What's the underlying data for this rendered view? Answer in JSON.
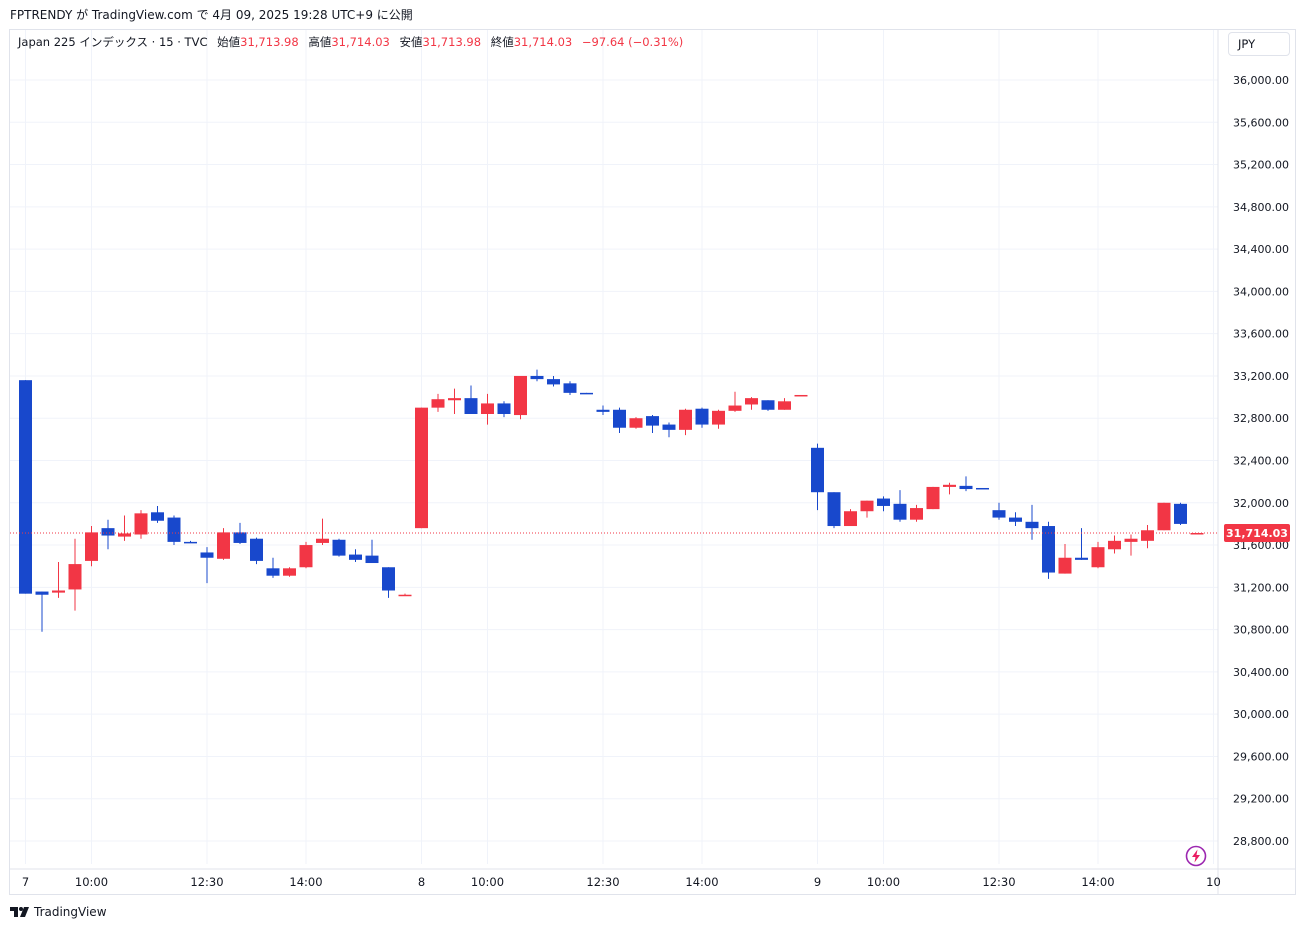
{
  "header": {
    "publisher_line": "FPTRENDY が TradingView.com で 4月 09, 2025 19:28 UTC+9 に公開"
  },
  "legend": {
    "symbol": "Japan 225 インデックス · 15 · TVC",
    "open_label": "始値",
    "open": "31,713.98",
    "high_label": "高値",
    "high": "31,714.03",
    "low_label": "安値",
    "low": "31,713.98",
    "close_label": "終値",
    "close": "31,714.03",
    "change": "−97.64 (−0.31%)"
  },
  "currency": "JPY",
  "footer": {
    "brand": "TradingView"
  },
  "icons": {
    "logo": "tradingview-logo-icon",
    "fx": "lightning-icon"
  },
  "colors": {
    "up": "#f23645",
    "down": "#1848cc",
    "grid": "#f0f3fa",
    "price_badge": "#f23645"
  },
  "chart_data": {
    "type": "candlestick",
    "ylim": [
      28600,
      36400
    ],
    "y_ticks": [
      28800,
      29200,
      29600,
      30000,
      30400,
      30800,
      31200,
      31600,
      32000,
      32400,
      32800,
      33200,
      33600,
      34000,
      34400,
      34800,
      35200,
      35600,
      36000
    ],
    "y_tick_labels": [
      "28,800.00",
      "29,200.00",
      "29,600.00",
      "30,000.00",
      "30,400.00",
      "30,800.00",
      "31,200.00",
      "31,600.00",
      "32,000.00",
      "32,400.00",
      "32,800.00",
      "33,200.00",
      "33,600.00",
      "34,000.00",
      "34,400.00",
      "34,800.00",
      "35,200.00",
      "35,600.00",
      "36,000.00"
    ],
    "x_ticks": [
      {
        "i": 0,
        "label": "7"
      },
      {
        "i": 4,
        "label": "10:00"
      },
      {
        "i": 11,
        "label": "12:30"
      },
      {
        "i": 17,
        "label": "14:00"
      },
      {
        "i": 24,
        "label": "8"
      },
      {
        "i": 28,
        "label": "10:00"
      },
      {
        "i": 35,
        "label": "12:30"
      },
      {
        "i": 41,
        "label": "14:00"
      },
      {
        "i": 48,
        "label": "9"
      },
      {
        "i": 52,
        "label": "10:00"
      },
      {
        "i": 59,
        "label": "12:30"
      },
      {
        "i": 65,
        "label": "14:00"
      },
      {
        "i": 72,
        "label": "10"
      }
    ],
    "last_price": 31714.03,
    "last_price_label": "31,714.03",
    "candles": [
      {
        "o": 33160,
        "h": 33160,
        "l": 31140,
        "c": 31140
      },
      {
        "o": 31160,
        "h": 31160,
        "l": 30780,
        "c": 31130
      },
      {
        "o": 31150,
        "h": 31440,
        "l": 31100,
        "c": 31170
      },
      {
        "o": 31180,
        "h": 31660,
        "l": 30980,
        "c": 31420
      },
      {
        "o": 31450,
        "h": 31780,
        "l": 31400,
        "c": 31720
      },
      {
        "o": 31760,
        "h": 31840,
        "l": 31560,
        "c": 31690
      },
      {
        "o": 31680,
        "h": 31880,
        "l": 31640,
        "c": 31710
      },
      {
        "o": 31700,
        "h": 31930,
        "l": 31660,
        "c": 31900
      },
      {
        "o": 31910,
        "h": 31970,
        "l": 31810,
        "c": 31830
      },
      {
        "o": 31860,
        "h": 31880,
        "l": 31600,
        "c": 31630
      },
      {
        "o": 31630,
        "h": 31640,
        "l": 31620,
        "c": 31620
      },
      {
        "o": 31530,
        "h": 31580,
        "l": 31240,
        "c": 31480
      },
      {
        "o": 31470,
        "h": 31760,
        "l": 31460,
        "c": 31720
      },
      {
        "o": 31720,
        "h": 31810,
        "l": 31610,
        "c": 31620
      },
      {
        "o": 31660,
        "h": 31670,
        "l": 31420,
        "c": 31450
      },
      {
        "o": 31380,
        "h": 31480,
        "l": 31290,
        "c": 31310
      },
      {
        "o": 31310,
        "h": 31390,
        "l": 31300,
        "c": 31380
      },
      {
        "o": 31390,
        "h": 31630,
        "l": 31380,
        "c": 31600
      },
      {
        "o": 31620,
        "h": 31850,
        "l": 31600,
        "c": 31660
      },
      {
        "o": 31650,
        "h": 31660,
        "l": 31490,
        "c": 31500
      },
      {
        "o": 31510,
        "h": 31560,
        "l": 31440,
        "c": 31460
      },
      {
        "o": 31500,
        "h": 31650,
        "l": 31430,
        "c": 31430
      },
      {
        "o": 31390,
        "h": 31390,
        "l": 31100,
        "c": 31170
      },
      {
        "o": 31130,
        "h": 31140,
        "l": 31120,
        "c": 31130
      },
      {
        "o": 31760,
        "h": 32900,
        "l": 31760,
        "c": 32900
      },
      {
        "o": 32900,
        "h": 33030,
        "l": 32860,
        "c": 32980
      },
      {
        "o": 32970,
        "h": 33080,
        "l": 32840,
        "c": 32990
      },
      {
        "o": 32990,
        "h": 33110,
        "l": 32840,
        "c": 32840
      },
      {
        "o": 32840,
        "h": 33030,
        "l": 32740,
        "c": 32940
      },
      {
        "o": 32940,
        "h": 32960,
        "l": 32810,
        "c": 32840
      },
      {
        "o": 32830,
        "h": 33200,
        "l": 32790,
        "c": 33200
      },
      {
        "o": 33200,
        "h": 33260,
        "l": 33150,
        "c": 33170
      },
      {
        "o": 33170,
        "h": 33200,
        "l": 33100,
        "c": 33120
      },
      {
        "o": 33130,
        "h": 33150,
        "l": 33020,
        "c": 33040
      },
      {
        "o": 33040,
        "h": 33040,
        "l": 33030,
        "c": 33030
      },
      {
        "o": 32880,
        "h": 32920,
        "l": 32830,
        "c": 32860
      },
      {
        "o": 32880,
        "h": 32900,
        "l": 32660,
        "c": 32710
      },
      {
        "o": 32710,
        "h": 32810,
        "l": 32700,
        "c": 32800
      },
      {
        "o": 32820,
        "h": 32830,
        "l": 32660,
        "c": 32730
      },
      {
        "o": 32740,
        "h": 32760,
        "l": 32620,
        "c": 32690
      },
      {
        "o": 32690,
        "h": 32890,
        "l": 32640,
        "c": 32880
      },
      {
        "o": 32890,
        "h": 32900,
        "l": 32710,
        "c": 32740
      },
      {
        "o": 32740,
        "h": 32880,
        "l": 32700,
        "c": 32870
      },
      {
        "o": 32870,
        "h": 33050,
        "l": 32860,
        "c": 32920
      },
      {
        "o": 32930,
        "h": 33000,
        "l": 32880,
        "c": 32990
      },
      {
        "o": 32970,
        "h": 32970,
        "l": 32870,
        "c": 32880
      },
      {
        "o": 32880,
        "h": 32990,
        "l": 32880,
        "c": 32960
      },
      {
        "o": 33010,
        "h": 33020,
        "l": 33010,
        "c": 33020
      },
      {
        "o": 32520,
        "h": 32560,
        "l": 31930,
        "c": 32100
      },
      {
        "o": 32100,
        "h": 32100,
        "l": 31760,
        "c": 31780
      },
      {
        "o": 31780,
        "h": 31940,
        "l": 31780,
        "c": 31920
      },
      {
        "o": 31920,
        "h": 32020,
        "l": 31860,
        "c": 32020
      },
      {
        "o": 32040,
        "h": 32060,
        "l": 31920,
        "c": 31970
      },
      {
        "o": 31990,
        "h": 32120,
        "l": 31820,
        "c": 31840
      },
      {
        "o": 31840,
        "h": 31980,
        "l": 31820,
        "c": 31950
      },
      {
        "o": 31940,
        "h": 32150,
        "l": 31940,
        "c": 32150
      },
      {
        "o": 32150,
        "h": 32190,
        "l": 32080,
        "c": 32170
      },
      {
        "o": 32160,
        "h": 32250,
        "l": 32110,
        "c": 32130
      },
      {
        "o": 32140,
        "h": 32140,
        "l": 32130,
        "c": 32130
      },
      {
        "o": 31930,
        "h": 32000,
        "l": 31840,
        "c": 31860
      },
      {
        "o": 31860,
        "h": 31910,
        "l": 31780,
        "c": 31820
      },
      {
        "o": 31820,
        "h": 31980,
        "l": 31650,
        "c": 31760
      },
      {
        "o": 31780,
        "h": 31820,
        "l": 31280,
        "c": 31340
      },
      {
        "o": 31330,
        "h": 31610,
        "l": 31330,
        "c": 31480
      },
      {
        "o": 31480,
        "h": 31760,
        "l": 31460,
        "c": 31460
      },
      {
        "o": 31390,
        "h": 31630,
        "l": 31380,
        "c": 31580
      },
      {
        "o": 31560,
        "h": 31690,
        "l": 31520,
        "c": 31640
      },
      {
        "o": 31630,
        "h": 31700,
        "l": 31500,
        "c": 31660
      },
      {
        "o": 31640,
        "h": 31790,
        "l": 31570,
        "c": 31740
      },
      {
        "o": 31740,
        "h": 32000,
        "l": 31740,
        "c": 32000
      },
      {
        "o": 31990,
        "h": 32000,
        "l": 31790,
        "c": 31800
      },
      {
        "o": 31714,
        "h": 31714,
        "l": 31713,
        "c": 31714
      }
    ]
  }
}
